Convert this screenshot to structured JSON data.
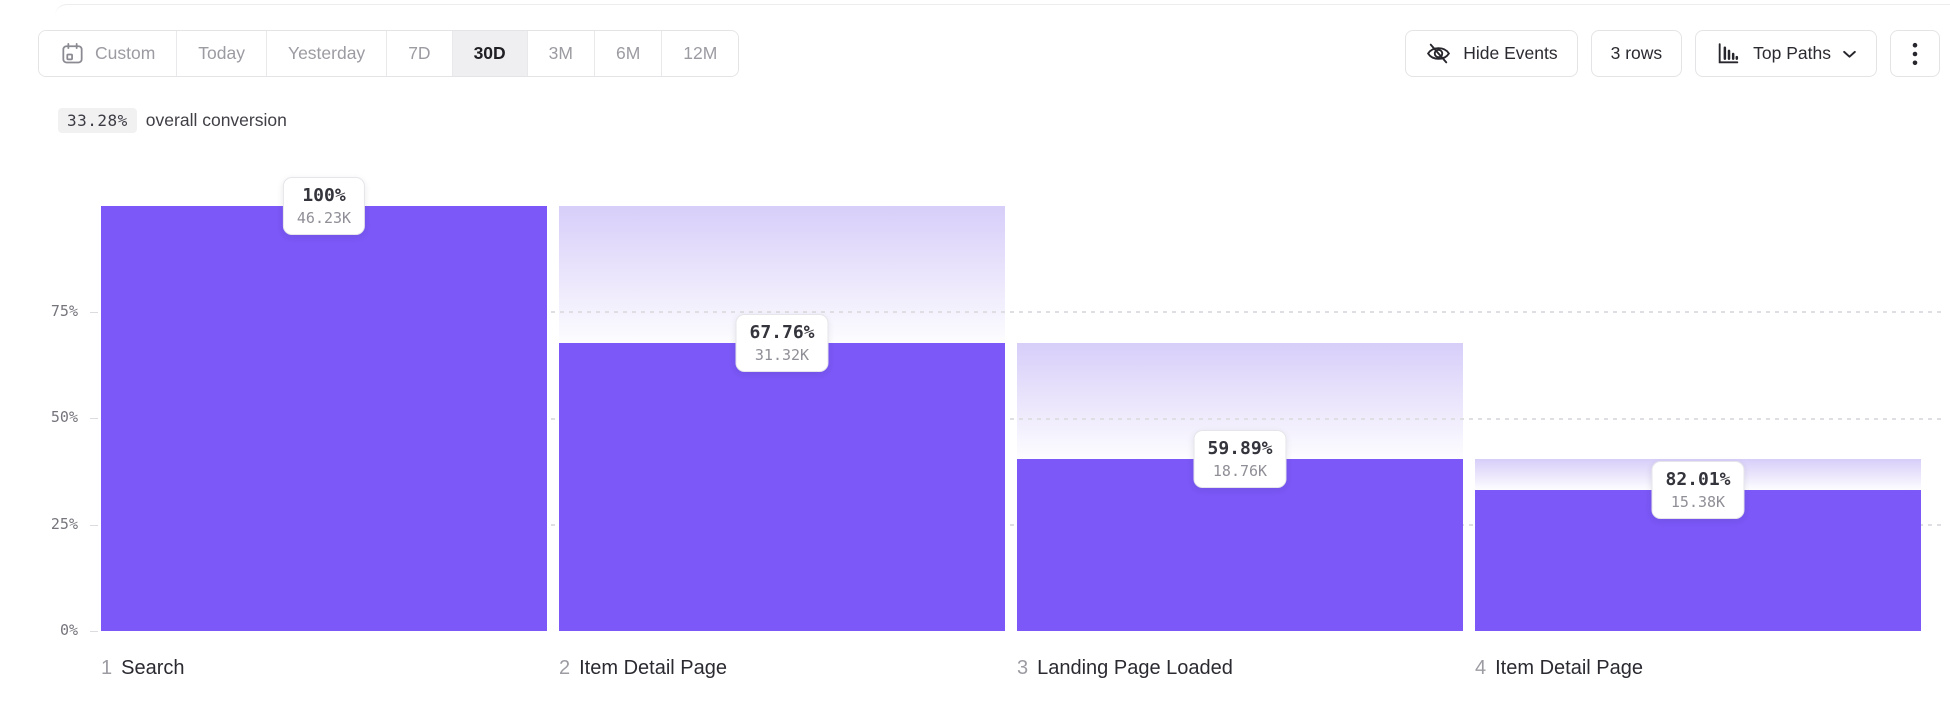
{
  "toolbar": {
    "date_ranges": [
      {
        "label": "Custom",
        "active": false,
        "icon": "calendar-icon"
      },
      {
        "label": "Today",
        "active": false
      },
      {
        "label": "Yesterday",
        "active": false
      },
      {
        "label": "7D",
        "active": false
      },
      {
        "label": "30D",
        "active": true
      },
      {
        "label": "3M",
        "active": false
      },
      {
        "label": "6M",
        "active": false
      },
      {
        "label": "12M",
        "active": false
      }
    ],
    "hide_events_label": "Hide Events",
    "rows_label": "3 rows",
    "view_selector_label": "Top Paths"
  },
  "summary": {
    "value": "33.28%",
    "text": "overall conversion"
  },
  "chart_data": {
    "type": "bar",
    "subtype": "funnel",
    "title": "",
    "xlabel": "",
    "ylabel": "",
    "ylim": [
      0,
      100
    ],
    "grid": "dashed horizontal lines at 25%, 50%, 75%",
    "legend_position": "none",
    "y_ticks": [
      "0%",
      "25%",
      "50%",
      "75%"
    ],
    "overall_conversion": "33.28%",
    "bar_color": "#7b58f7",
    "dropoff_fade_top_color": "#d7cef9",
    "steps": [
      {
        "index": "1",
        "label": "Search",
        "conversion_from_previous": "100%",
        "count": "46.23K",
        "overall_pct": 100
      },
      {
        "index": "2",
        "label": "Item Detail Page",
        "conversion_from_previous": "67.76%",
        "count": "31.32K",
        "overall_pct": 67.74
      },
      {
        "index": "3",
        "label": "Landing Page Loaded",
        "conversion_from_previous": "59.89%",
        "count": "18.76K",
        "overall_pct": 40.58
      },
      {
        "index": "4",
        "label": "Item Detail Page",
        "conversion_from_previous": "82.01%",
        "count": "15.38K",
        "overall_pct": 33.27
      }
    ]
  }
}
